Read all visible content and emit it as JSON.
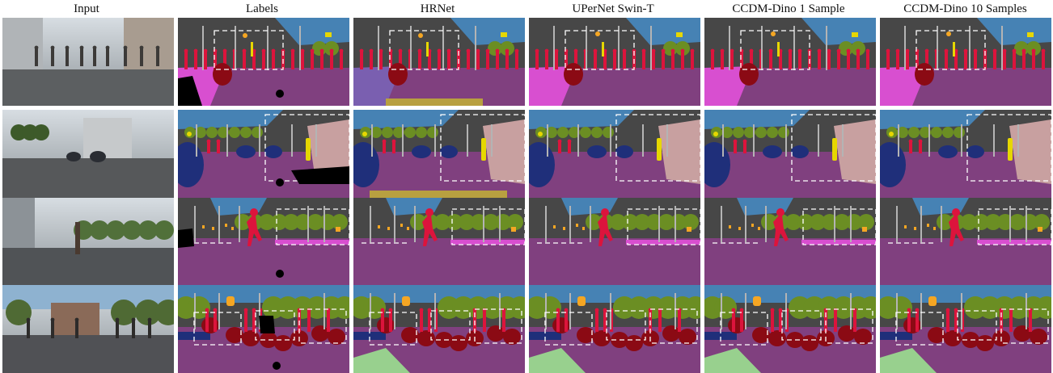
{
  "figure": {
    "columns": [
      "Input",
      "Labels",
      "HRNet",
      "UPerNet Swin-T",
      "CCDM-Dino 1 Sample",
      "CCDM-Dino 10 Samples"
    ],
    "rows": [
      "row-1",
      "row-2",
      "row-3",
      "row-4"
    ]
  },
  "palette": {
    "road": "#80407f",
    "sidewalk": "#d84fd0",
    "building": "#474747",
    "vegetation": "#6b8e23",
    "sky": "#4682b4",
    "person": "#dc143c",
    "rider": "#8b0a14",
    "car": "#1f2f7a",
    "pole": "#b4b4b4",
    "traffic_sign": "#e6d700",
    "traffic_light": "#f5a623",
    "wall": "#c8a0a0",
    "terrain": "#98d08e",
    "unlabeled": "#000000"
  }
}
